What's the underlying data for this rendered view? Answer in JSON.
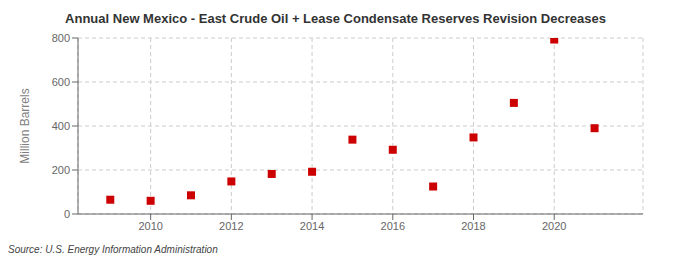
{
  "chart_data": {
    "type": "scatter",
    "title": "Annual New Mexico - East Crude Oil + Lease Condensate Reserves Revision Decreases",
    "ylabel": "Million Barrels",
    "annotations": [
      "Source: U.S. Energy Information Administration"
    ],
    "x": [
      2009,
      2010,
      2011,
      2012,
      2013,
      2014,
      2015,
      2016,
      2017,
      2018,
      2019,
      2020,
      2021
    ],
    "values": [
      65,
      60,
      85,
      148,
      182,
      192,
      338,
      292,
      125,
      348,
      505,
      793,
      390
    ],
    "color": "#cc0000",
    "marker": "square",
    "xlim": [
      2008.2,
      2022.2
    ],
    "xticks": [
      2010,
      2012,
      2014,
      2016,
      2018,
      2020
    ],
    "ylim": [
      0,
      800
    ],
    "yticks": [
      0,
      200,
      400,
      600,
      800
    ],
    "grid": true
  }
}
